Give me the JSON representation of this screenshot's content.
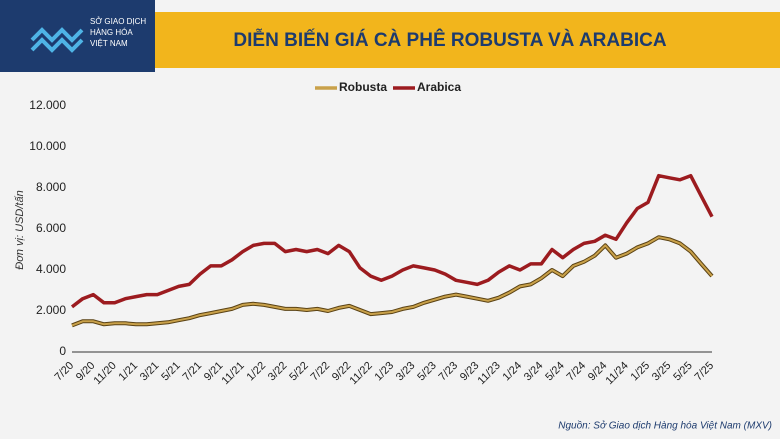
{
  "logo": [
    "SỞ GIAO DỊCH",
    "HÀNG HÓA",
    "VIỆT NAM"
  ],
  "source": "Nguồn: Sở Giao dịch Hàng hóa Việt Nam (MXV)",
  "chart_data": {
    "type": "line",
    "title": "DIỄN BIẾN GIÁ CÀ PHÊ ROBUSTA VÀ ARABICA",
    "y_label": "Đơn vị: USD/tấn",
    "categories": [
      "7/20",
      null,
      "9/20",
      null,
      "11/20",
      null,
      "1/21",
      null,
      "3/21",
      null,
      "5/21",
      null,
      "7/21",
      null,
      "9/21",
      null,
      "11/21",
      null,
      "1/22",
      null,
      "3/22",
      null,
      "5/22",
      null,
      "7/22",
      null,
      "9/22",
      null,
      "11/22",
      null,
      "1/23",
      null,
      "3/23",
      null,
      "5/23",
      null,
      "7/23",
      null,
      "9/23",
      null,
      "11/23",
      null,
      "1/24",
      null,
      "3/24",
      null,
      "5/24",
      null,
      "7/24",
      null,
      "9/24",
      null,
      "11/24",
      null,
      "1/25",
      null,
      "3/25",
      null,
      "5/25",
      null,
      "7/25"
    ],
    "series": [
      {
        "name": "Robusta",
        "color": "#c9a14a",
        "values": [
          1300,
          1500,
          1500,
          1350,
          1400,
          1400,
          1350,
          1350,
          1400,
          1450,
          1550,
          1650,
          1800,
          1900,
          2000,
          2100,
          2300,
          2350,
          2300,
          2200,
          2100,
          2100,
          2050,
          2100,
          2000,
          2150,
          2250,
          2050,
          1850,
          1900,
          1950,
          2100,
          2200,
          2400,
          2550,
          2700,
          2800,
          2700,
          2600,
          2500,
          2650,
          2900,
          3200,
          3300,
          3600,
          4000,
          3700,
          4200,
          4400,
          4700,
          5200,
          4600,
          4800,
          5100,
          5300,
          5600,
          5500,
          5300,
          4900,
          4300,
          3700
        ]
      },
      {
        "name": "Arabica",
        "color": "#9c1b1f",
        "values": [
          2200,
          2600,
          2800,
          2400,
          2400,
          2600,
          2700,
          2800,
          2800,
          3000,
          3200,
          3300,
          3800,
          4200,
          4200,
          4500,
          4900,
          5200,
          5300,
          5300,
          4900,
          5000,
          4900,
          5000,
          4800,
          5200,
          4900,
          4100,
          3700,
          3500,
          3700,
          4000,
          4200,
          4100,
          4000,
          3800,
          3500,
          3400,
          3300,
          3500,
          3900,
          4200,
          4000,
          4300,
          4300,
          5000,
          4600,
          5000,
          5300,
          5400,
          5700,
          5500,
          6300,
          7000,
          7300,
          8600,
          8500,
          8400,
          8600,
          7600,
          6600
        ]
      }
    ],
    "ylim": [
      0,
      12000
    ],
    "yticks": [
      0,
      {
        "value": 2000,
        "label": "2.000"
      },
      {
        "value": 4000,
        "label": "4.000"
      },
      {
        "value": 6000,
        "label": "6.000"
      },
      {
        "value": 8000,
        "label": "8.000"
      },
      {
        "value": 10000,
        "label": "10.000"
      },
      {
        "value": 12000,
        "label": "12.000"
      }
    ],
    "legend": "top"
  }
}
